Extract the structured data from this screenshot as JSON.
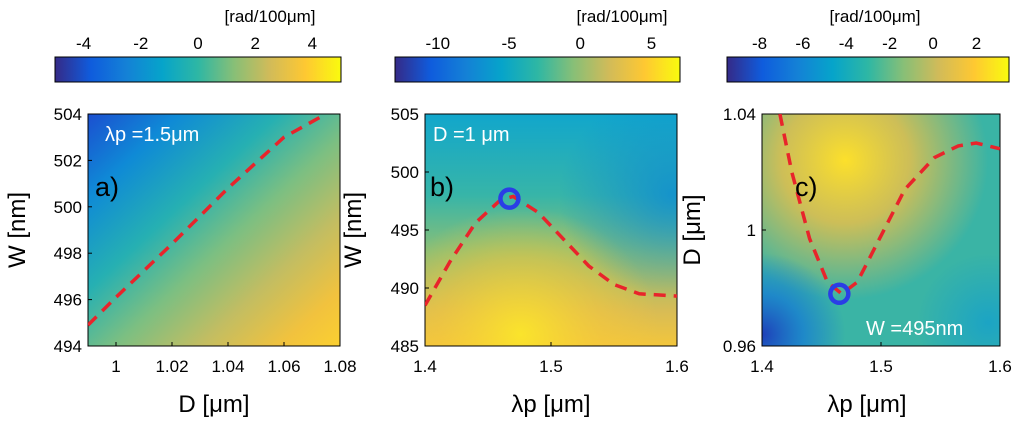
{
  "chart_data": [
    {
      "type": "heatmap",
      "panel_label": "a)",
      "annotation": "λp =1.5μm",
      "colorbar": {
        "unit": "[rad/100μm]",
        "ticks": [
          -4,
          -2,
          0,
          2,
          4
        ],
        "range": [
          -5,
          5
        ]
      },
      "x": {
        "label": "D [μm]",
        "range": [
          0.99,
          1.08
        ],
        "ticks": [
          1,
          1.02,
          1.04,
          1.06,
          1.08
        ],
        "tick_labels": [
          "1",
          "1.02",
          "1.04",
          "1.06",
          "1.08"
        ]
      },
      "y": {
        "label": "W [nm]",
        "range": [
          494,
          504
        ],
        "ticks": [
          494,
          496,
          498,
          500,
          502,
          504
        ],
        "tick_labels": [
          "494",
          "496",
          "498",
          "500",
          "502",
          "504"
        ]
      },
      "zero_contour": [
        [
          0.99,
          494.9
        ],
        [
          1.0,
          496.1
        ],
        [
          1.02,
          498.4
        ],
        [
          1.04,
          500.8
        ],
        [
          1.06,
          503.0
        ],
        [
          1.075,
          504.0
        ]
      ],
      "markers": []
    },
    {
      "type": "heatmap",
      "panel_label": "b)",
      "annotation": "D =1 μm",
      "colorbar": {
        "unit": "[rad/100μm]",
        "ticks": [
          -10,
          -5,
          0,
          5
        ],
        "range": [
          -13,
          7
        ]
      },
      "x": {
        "label": "λp [μm]",
        "range": [
          1.4,
          1.6
        ],
        "ticks": [
          1.4,
          1.5,
          1.6
        ],
        "tick_labels": [
          "1.4",
          "1.5",
          "1.6"
        ]
      },
      "y": {
        "label": "W [nm]",
        "range": [
          485,
          505
        ],
        "ticks": [
          485,
          490,
          495,
          500,
          505
        ],
        "tick_labels": [
          "485",
          "490",
          "495",
          "500",
          "505"
        ]
      },
      "zero_contour": [
        [
          1.4,
          488.5
        ],
        [
          1.42,
          492.3
        ],
        [
          1.44,
          495.6
        ],
        [
          1.46,
          497.6
        ],
        [
          1.47,
          497.9
        ],
        [
          1.49,
          496.5
        ],
        [
          1.51,
          494.2
        ],
        [
          1.53,
          491.9
        ],
        [
          1.55,
          490.3
        ],
        [
          1.57,
          489.5
        ],
        [
          1.6,
          489.3
        ]
      ],
      "markers": [
        [
          1.467,
          497.7
        ]
      ]
    },
    {
      "type": "heatmap",
      "panel_label": "c)",
      "annotation": "W =495nm",
      "colorbar": {
        "unit": "[rad/100μm]",
        "ticks": [
          -8,
          -6,
          -4,
          -2,
          0,
          2
        ],
        "range": [
          -9.5,
          3.5
        ]
      },
      "x": {
        "label": "λp [μm]",
        "range": [
          1.4,
          1.6
        ],
        "ticks": [
          1.4,
          1.5,
          1.6
        ],
        "tick_labels": [
          "1.4",
          "1.5",
          "1.6"
        ]
      },
      "y": {
        "label": "D [μm]",
        "range": [
          0.96,
          1.04
        ],
        "ticks": [
          0.96,
          1,
          1.04
        ],
        "tick_labels": [
          "0.96",
          "1",
          "1.04"
        ]
      },
      "zero_contour": [
        [
          1.415,
          1.04
        ],
        [
          1.425,
          1.02
        ],
        [
          1.44,
          0.997
        ],
        [
          1.455,
          0.982
        ],
        [
          1.467,
          0.978
        ],
        [
          1.48,
          0.982
        ],
        [
          1.5,
          0.998
        ],
        [
          1.52,
          1.014
        ],
        [
          1.545,
          1.025
        ],
        [
          1.565,
          1.029
        ],
        [
          1.58,
          1.03
        ],
        [
          1.6,
          1.028
        ]
      ],
      "markers": [
        [
          1.465,
          0.978
        ]
      ]
    }
  ]
}
